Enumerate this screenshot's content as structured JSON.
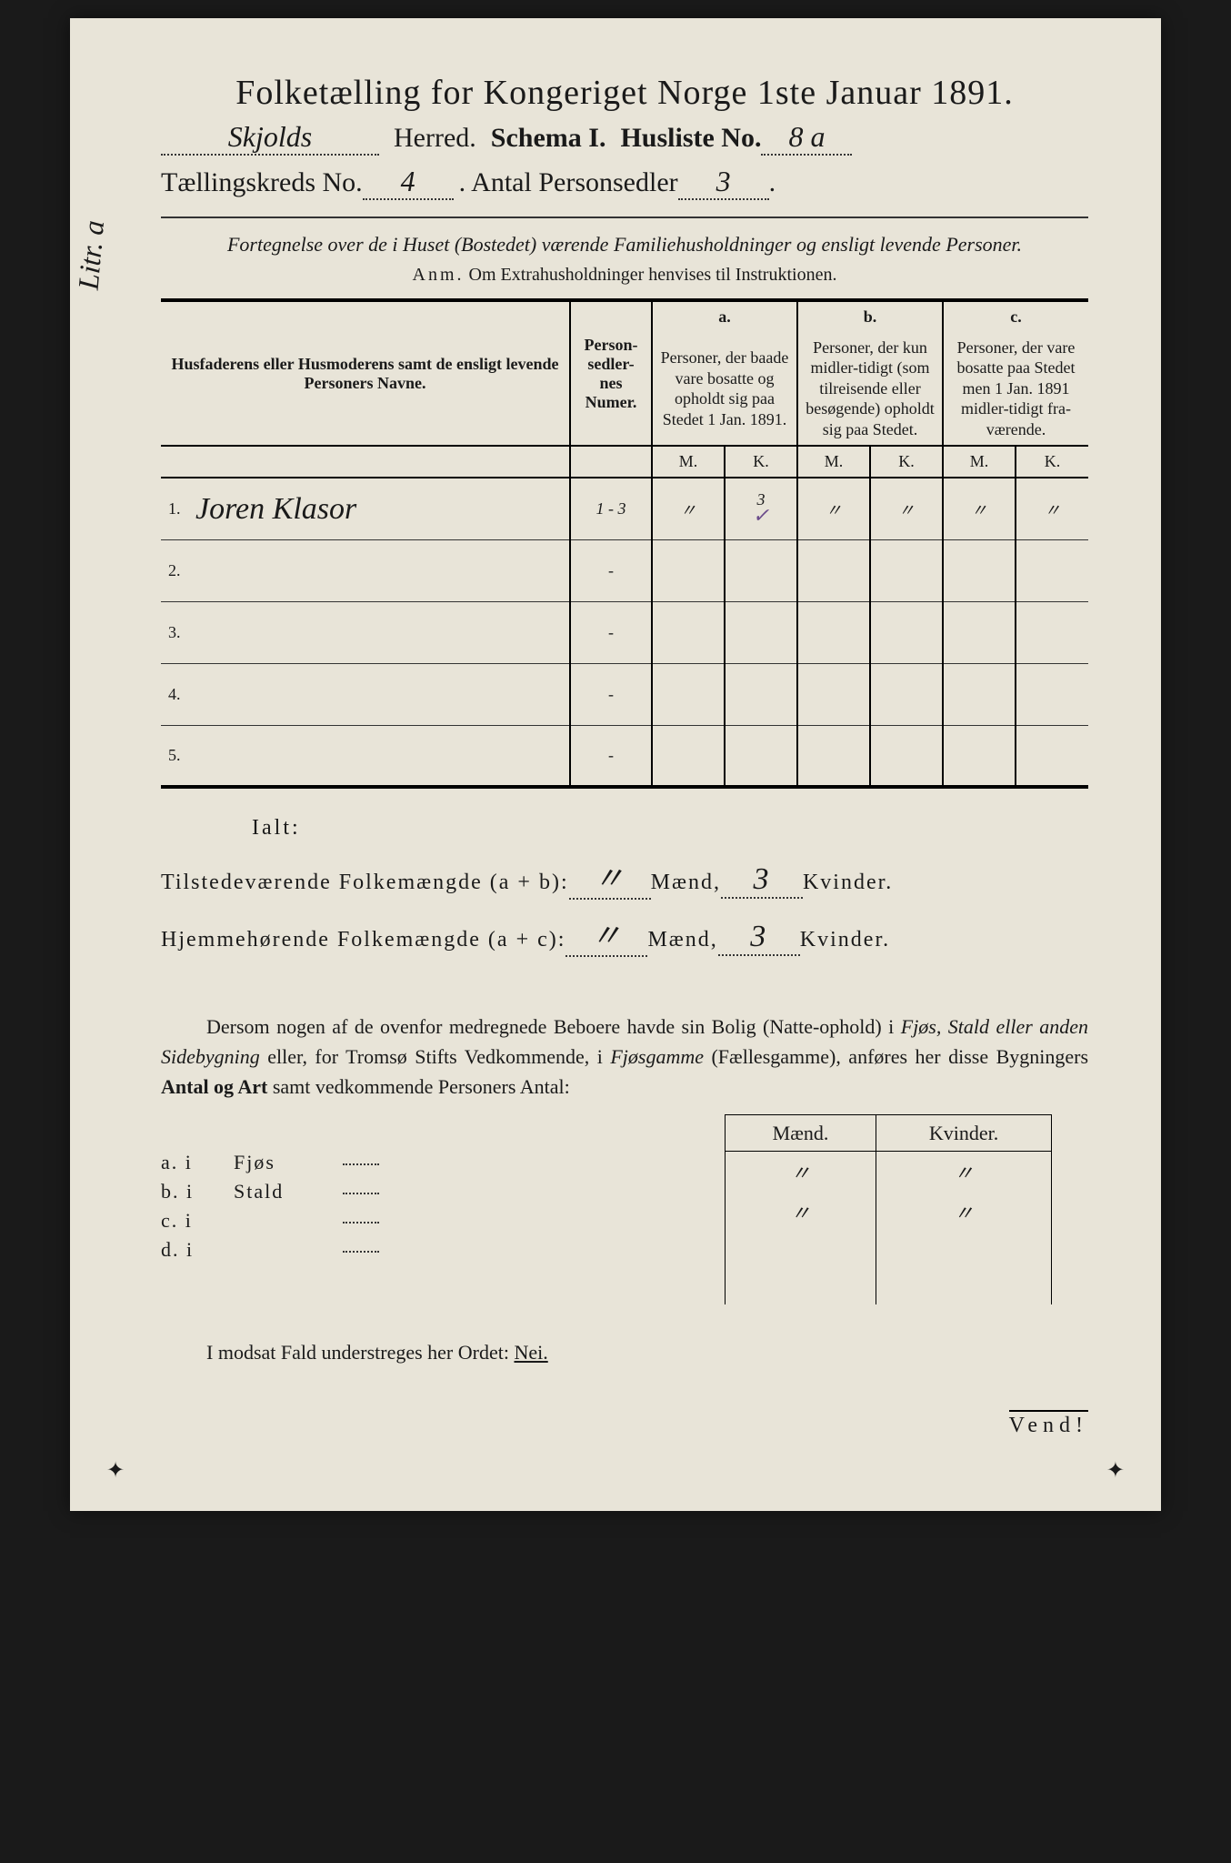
{
  "side_annotation": "Litr. a",
  "title": "Folketælling for Kongeriget Norge 1ste Januar 1891.",
  "header": {
    "herred_value": "Skjolds",
    "herred_label": "Herred.",
    "schema_label": "Schema I.",
    "husliste_label": "Husliste No.",
    "husliste_value": "8 a",
    "kreds_label": "Tællingskreds No.",
    "kreds_value": "4",
    "antal_label": "Antal Personsedler",
    "antal_value": "3"
  },
  "subtitle": "Fortegnelse over de i Huset (Bostedet) værende Familiehusholdninger og ensligt levende Personer.",
  "anm_label": "Anm.",
  "anm_text": "Om Extrahusholdninger henvises til Instruktionen.",
  "table": {
    "col1": "Husfaderens eller Husmoderens samt de ensligt levende Personers Navne.",
    "col2": "Person-sedler-nes Numer.",
    "a_label": "a.",
    "a_text": "Personer, der baade vare bosatte og opholdt sig paa Stedet 1 Jan. 1891.",
    "b_label": "b.",
    "b_text": "Personer, der kun midler-tidigt (som tilreisende eller besøgende) opholdt sig paa Stedet.",
    "c_label": "c.",
    "c_text": "Personer, der vare bosatte paa Stedet men 1 Jan. 1891 midler-tidigt fra-værende.",
    "m": "M.",
    "k": "K.",
    "rows": [
      {
        "num": "1.",
        "name": "Joren Klasor",
        "sedler": "1 - 3",
        "am": "〃",
        "ak": "3",
        "check": "✓",
        "bm": "〃",
        "bk": "〃",
        "cm": "〃",
        "ck": "〃"
      },
      {
        "num": "2.",
        "name": "",
        "sedler": "-",
        "am": "",
        "ak": "",
        "check": "",
        "bm": "",
        "bk": "",
        "cm": "",
        "ck": ""
      },
      {
        "num": "3.",
        "name": "",
        "sedler": "-",
        "am": "",
        "ak": "",
        "check": "",
        "bm": "",
        "bk": "",
        "cm": "",
        "ck": ""
      },
      {
        "num": "4.",
        "name": "",
        "sedler": "-",
        "am": "",
        "ak": "",
        "check": "",
        "bm": "",
        "bk": "",
        "cm": "",
        "ck": ""
      },
      {
        "num": "5.",
        "name": "",
        "sedler": "-",
        "am": "",
        "ak": "",
        "check": "",
        "bm": "",
        "bk": "",
        "cm": "",
        "ck": ""
      }
    ]
  },
  "ialt": {
    "label": "Ialt:",
    "line1_label": "Tilstedeværende Folkemængde (a + b):",
    "line2_label": "Hjemmehørende Folkemængde (a + c):",
    "maend": "Mænd,",
    "kvinder": "Kvinder.",
    "line1_m": "〃",
    "line1_k": "3",
    "line2_m": "〃",
    "line2_k": "3"
  },
  "paragraph": {
    "text1": "Dersom nogen af de ovenfor medregnede Beboere havde sin Bolig (Natte-ophold) i ",
    "italic1": "Fjøs, Stald eller anden Sidebygning",
    "text2": " eller, for Tromsø Stifts Vedkommende, i ",
    "italic2": "Fjøsgamme",
    "text3": " (Fællesgamme), anføres her disse Bygningers ",
    "bold1": "Antal og Art",
    "text4": " samt vedkommende Personers Antal:"
  },
  "mk": {
    "maend": "Mænd.",
    "kvinder": "Kvinder.",
    "rows": [
      {
        "m": "〃",
        "k": "〃"
      },
      {
        "m": "〃",
        "k": "〃"
      },
      {
        "m": "",
        "k": ""
      },
      {
        "m": "",
        "k": ""
      }
    ]
  },
  "bottom_lines": [
    {
      "label": "a.  i",
      "word": "Fjøs"
    },
    {
      "label": "b.  i",
      "word": "Stald"
    },
    {
      "label": "c.  i",
      "word": ""
    },
    {
      "label": "d.  i",
      "word": ""
    }
  ],
  "nei": {
    "text": "I modsat Fald understreges her Ordet: ",
    "word": "Nei."
  },
  "vend": "Vend!"
}
